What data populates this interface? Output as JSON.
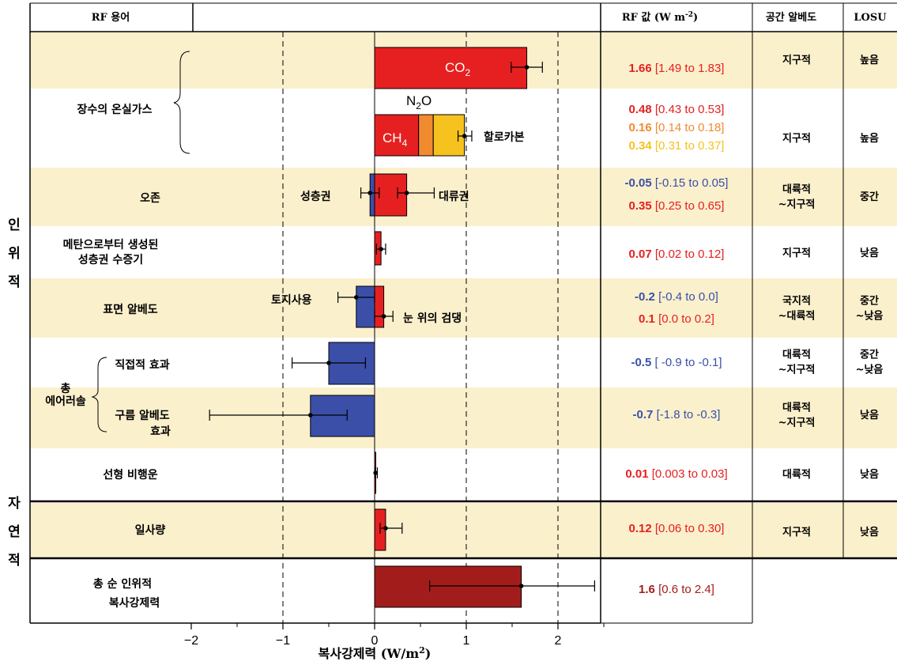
{
  "headers": {
    "rf_terms": "RF 용어",
    "rf_value": "RF 값 (W m",
    "rf_value_exp": "-2",
    "rf_value_close": ")",
    "spatial": "공간 알베도",
    "losu": "LOSU"
  },
  "side_labels": {
    "anthropogenic": [
      "인",
      "위",
      "적"
    ],
    "natural": [
      "자",
      "연",
      "적"
    ]
  },
  "row_labels": {
    "lived_ghg": "장수의 온실가스",
    "ozone": "오존",
    "strat_h2o_1": "메탄으로부터 생성된",
    "strat_h2o_2": "성층권 수증기",
    "albedo": "표면 알베도",
    "aerosol_group_1": "총",
    "aerosol_group_2": "에어러솔",
    "direct": "직접적 효과",
    "cloud_1": "구름 알베도",
    "cloud_2": "효과",
    "contrails": "선형 비행운",
    "solar": "일사량",
    "total_1": "총 순 인위적",
    "total_2": "복사강제력"
  },
  "annotations": {
    "co2": "CO",
    "co2_sub": "2",
    "n2o": "N",
    "n2o_sub": "2",
    "n2o_tail": "O",
    "ch4": "CH",
    "ch4_sub": "4",
    "halocarbons": "할로카본",
    "strat": "성층권",
    "trop": "대류권",
    "land_use": "토지사용",
    "black_carbon": "눈 위의 검댕"
  },
  "rf_values": [
    {
      "best": "1.66",
      "range": "[1.49 to 1.83]",
      "color": "#e62020"
    },
    {
      "best": "0.48",
      "range": "[0.43 to 0.53]",
      "color": "#e62020"
    },
    {
      "best": "0.16",
      "range": "[0.14 to 0.18]",
      "color": "#f28a30"
    },
    {
      "best": "0.34",
      "range": "[0.31 to 0.37]",
      "color": "#f6c21e"
    },
    {
      "best": "-0.05",
      "range": "[-0.15 to 0.05]",
      "color": "#3b4fa8"
    },
    {
      "best": "0.35",
      "range": "[0.25 to 0.65]",
      "color": "#e62020"
    },
    {
      "best": "0.07",
      "range": "[0.02 to 0.12]",
      "color": "#e62020"
    },
    {
      "best": "-0.2",
      "range": "[-0.4 to 0.0]",
      "color": "#3b4fa8"
    },
    {
      "best": "0.1",
      "range": "[0.0 to 0.2]",
      "color": "#e62020"
    },
    {
      "best": "-0.5",
      "range": "[ -0.9 to -0.1]",
      "color": "#3b4fa8"
    },
    {
      "best": "-0.7",
      "range": "[-1.8 to -0.3]",
      "color": "#3b4fa8"
    },
    {
      "best": "0.01",
      "range": "[0.003 to 0.03]",
      "color": "#e62020"
    },
    {
      "best": "0.12",
      "range": "[0.06 to 0.30]",
      "color": "#e62020"
    },
    {
      "best": "1.6",
      "range": "[0.6 to 2.4]",
      "color": "#a31c1c"
    }
  ],
  "spatial": [
    [
      "지구적"
    ],
    [
      "지구적"
    ],
    [
      "대륙적",
      "~지구적"
    ],
    [
      "지구적"
    ],
    [
      "국지적",
      "~대륙적"
    ],
    [
      "대륙적",
      "~지구적"
    ],
    [
      "대륙적",
      "~지구적"
    ],
    [
      "대륙적"
    ],
    [
      "지구적"
    ]
  ],
  "losu": [
    [
      "높음"
    ],
    [
      "높음"
    ],
    [
      "중간"
    ],
    [
      "낮음"
    ],
    [
      "중간",
      "~낮음"
    ],
    [
      "중간",
      "~낮음"
    ],
    [
      "낮음"
    ],
    [
      "낮음"
    ],
    [
      "낮음"
    ]
  ],
  "colors": {
    "band": "#fbf0cc",
    "red": "#e62020",
    "orange": "#f28a30",
    "yellow": "#f6c21e",
    "blue": "#3b4fa8",
    "darkred": "#a31c1c"
  },
  "chart_data": {
    "type": "bar",
    "orientation": "horizontal",
    "xlabel": "복사강제력 (W/m",
    "xlabel_exp": "2",
    "xlabel_close": ")",
    "xlim": [
      -2,
      2.5
    ],
    "xticks": [
      -2,
      -1,
      0,
      1,
      2
    ],
    "tick_labels": [
      "−2",
      "−1",
      "0",
      "1",
      "2"
    ],
    "dashed_gridlines": [
      -1,
      1,
      2
    ],
    "bars": [
      {
        "name": "CO2",
        "value": 1.66,
        "low": 1.49,
        "high": 1.83,
        "color": "#e62020"
      },
      {
        "name": "CH4",
        "value": 0.48,
        "stack_start": 0,
        "color": "#e62020"
      },
      {
        "name": "N2O",
        "value": 0.16,
        "stack_start": 0.48,
        "color": "#f28a30"
      },
      {
        "name": "Halocarbons",
        "value": 0.34,
        "stack_start": 0.64,
        "low": 0.91,
        "high": 1.06,
        "total": 0.98,
        "color": "#f6c21e"
      },
      {
        "name": "Stratospheric ozone",
        "value": -0.05,
        "low": -0.15,
        "high": 0.05,
        "color": "#3b4fa8"
      },
      {
        "name": "Tropospheric ozone",
        "value": 0.35,
        "low": 0.25,
        "high": 0.65,
        "color": "#e62020"
      },
      {
        "name": "Stratospheric water vapour",
        "value": 0.07,
        "low": 0.02,
        "high": 0.12,
        "color": "#e62020"
      },
      {
        "name": "Land use",
        "value": -0.2,
        "low": -0.4,
        "high": 0.0,
        "color": "#3b4fa8"
      },
      {
        "name": "Black carbon on snow",
        "value": 0.1,
        "low": 0.0,
        "high": 0.2,
        "color": "#e62020"
      },
      {
        "name": "Aerosol direct effect",
        "value": -0.5,
        "low": -0.9,
        "high": -0.1,
        "color": "#3b4fa8"
      },
      {
        "name": "Cloud albedo effect",
        "value": -0.7,
        "low": -1.8,
        "high": -0.3,
        "color": "#3b4fa8"
      },
      {
        "name": "Linear contrails",
        "value": 0.01,
        "low": 0.003,
        "high": 0.03,
        "color": "#e62020"
      },
      {
        "name": "Solar irradiance",
        "value": 0.12,
        "low": 0.06,
        "high": 0.3,
        "color": "#e62020"
      },
      {
        "name": "Total net anthropogenic",
        "value": 1.6,
        "low": 0.6,
        "high": 2.4,
        "color": "#a31c1c"
      }
    ]
  }
}
